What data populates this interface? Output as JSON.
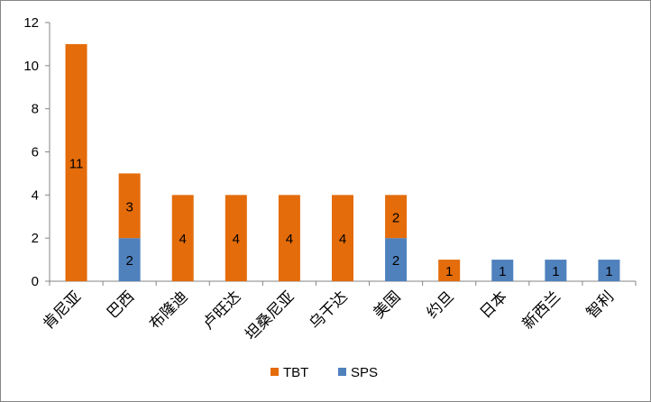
{
  "chart_data": {
    "type": "bar",
    "stacked": true,
    "title": "",
    "xlabel": "",
    "ylabel": "",
    "ylim": [
      0,
      12
    ],
    "yticks": [
      0,
      2,
      4,
      6,
      8,
      10,
      12
    ],
    "grid": false,
    "legend_position": "bottom",
    "categories": [
      "肯尼亚",
      "巴西",
      "布隆迪",
      "卢旺达",
      "坦桑尼亚",
      "乌干达",
      "美国",
      "约旦",
      "日本",
      "新西兰",
      "智利"
    ],
    "series": [
      {
        "name": "SPS",
        "color": "#4F81BD",
        "values": [
          0,
          2,
          0,
          0,
          0,
          0,
          2,
          0,
          1,
          1,
          1
        ]
      },
      {
        "name": "TBT",
        "color": "#E46C0A",
        "values": [
          11,
          3,
          4,
          4,
          4,
          4,
          2,
          1,
          0,
          0,
          0
        ]
      }
    ],
    "legend_order": [
      "TBT",
      "SPS"
    ]
  }
}
